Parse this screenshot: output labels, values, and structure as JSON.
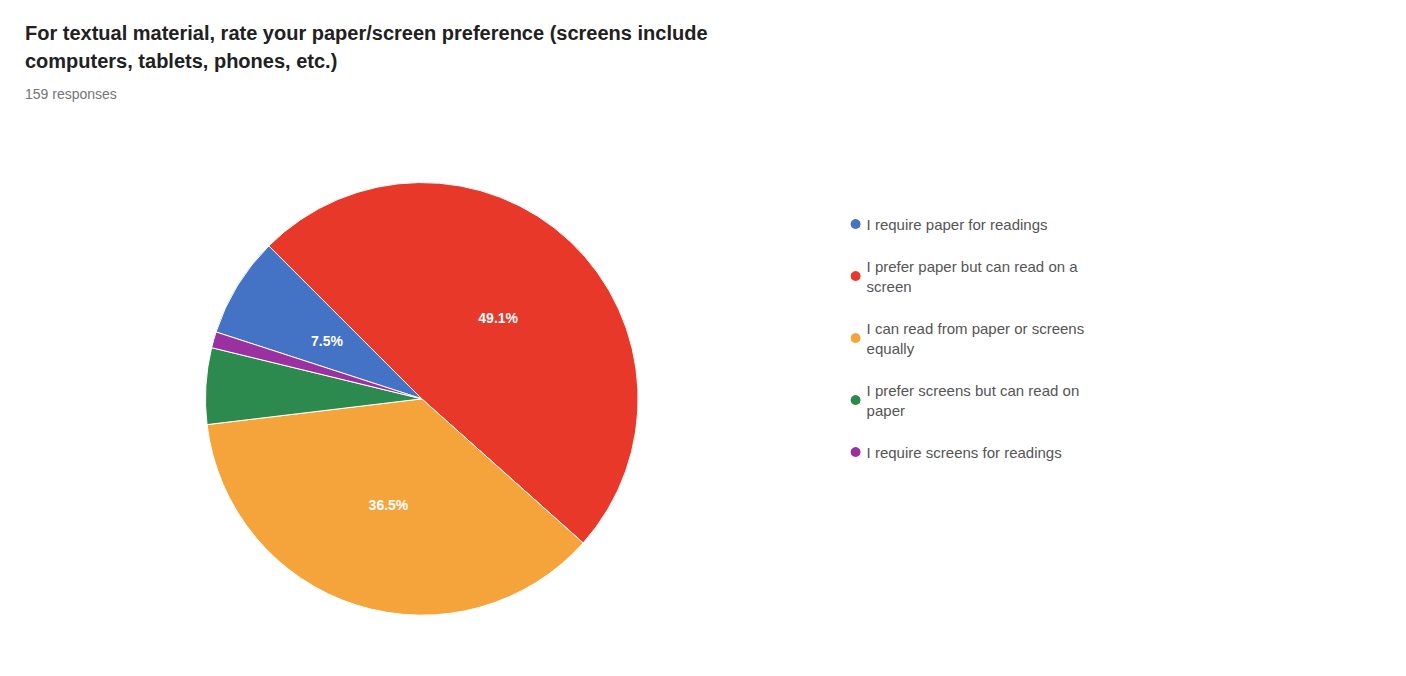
{
  "chart_data": {
    "type": "pie",
    "title": "For textual material, rate your paper/screen preference (screens include\ncomputers, tablets, phones, etc.)",
    "subtitle": "159 responses",
    "categories": [
      "I require paper for readings",
      "I prefer paper but can read on a\nscreen",
      "I can read from paper or screens\nequally",
      "I prefer screens but can read on\npaper",
      "I require screens for readings"
    ],
    "values": [
      7.5,
      49.1,
      36.5,
      5.7,
      1.2
    ],
    "value_labels": [
      "7.5%",
      "49.1%",
      "36.5%",
      null,
      null
    ],
    "data_labels": true,
    "colors": [
      "#4472c4",
      "#e8382a",
      "#f5a33b",
      "#2d8a4e",
      "#9b30a0"
    ],
    "legend": "right"
  }
}
